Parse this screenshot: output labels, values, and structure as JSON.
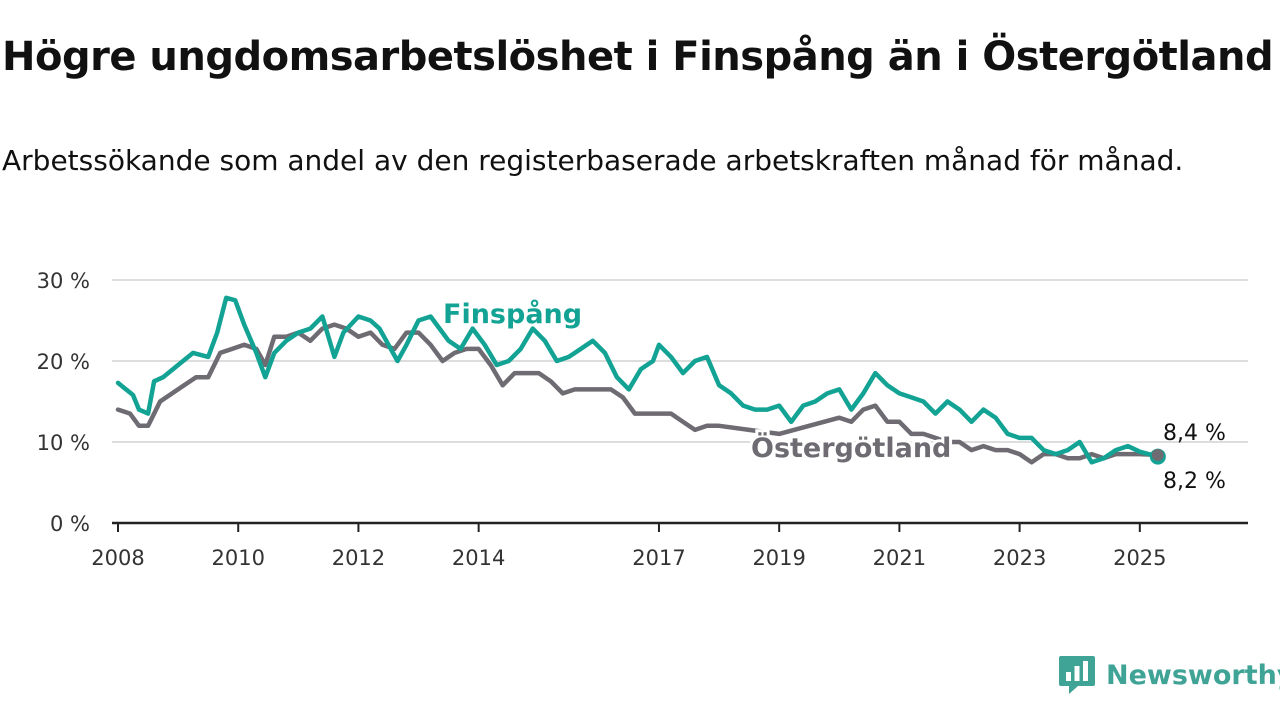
{
  "title": "Högre ungdomsarbetslöshet i Finspång än i Östergötland",
  "subtitle": "Arbetssökande som andel av den registerbaserade arbetskraften månad för månad.",
  "brand": "Newsworthy",
  "colors": {
    "finspang": "#13a394",
    "ostergotland": "#6e6c72",
    "grid": "#dddddd",
    "axis": "#222222",
    "brand": "#3fa395"
  },
  "chart_data": {
    "type": "line",
    "title": "Högre ungdomsarbetslöshet i Finspång än i Östergötland",
    "subtitle": "Arbetssökande som andel av den registerbaserade arbetskraften månad för månad.",
    "xlabel": "",
    "ylabel": "",
    "xlim": [
      2007.9,
      2026.8
    ],
    "ylim": [
      0,
      30
    ],
    "yticks": [
      0,
      10,
      20,
      30
    ],
    "ytick_labels": [
      "0 %",
      "10 %",
      "20 %",
      "30 %"
    ],
    "xticks": [
      2008,
      2010,
      2012,
      2014,
      2017,
      2019,
      2021,
      2023,
      2025
    ],
    "xtick_labels": [
      "2008",
      "2010",
      "2012",
      "2014",
      "2017",
      "2019",
      "2021",
      "2023",
      "2025"
    ],
    "grid": true,
    "legend": "direct labels",
    "series": [
      {
        "name": "Finspång",
        "final_label": "8,2 %",
        "x": [
          2008.0,
          2008.25,
          2008.35,
          2008.5,
          2008.6,
          2008.75,
          2009.0,
          2009.25,
          2009.5,
          2009.65,
          2009.8,
          2009.95,
          2010.1,
          2010.3,
          2010.45,
          2010.6,
          2010.8,
          2011.0,
          2011.2,
          2011.4,
          2011.6,
          2011.75,
          2012.0,
          2012.2,
          2012.35,
          2012.5,
          2012.65,
          2012.8,
          2013.0,
          2013.2,
          2013.35,
          2013.5,
          2013.7,
          2013.9,
          2014.1,
          2014.3,
          2014.5,
          2014.7,
          2014.9,
          2015.1,
          2015.3,
          2015.5,
          2015.7,
          2015.9,
          2016.1,
          2016.3,
          2016.5,
          2016.7,
          2016.9,
          2017.0,
          2017.2,
          2017.4,
          2017.6,
          2017.8,
          2018.0,
          2018.2,
          2018.4,
          2018.6,
          2018.8,
          2019.0,
          2019.2,
          2019.4,
          2019.6,
          2019.8,
          2020.0,
          2020.2,
          2020.4,
          2020.6,
          2020.8,
          2021.0,
          2021.2,
          2021.4,
          2021.6,
          2021.8,
          2022.0,
          2022.2,
          2022.4,
          2022.6,
          2022.8,
          2023.0,
          2023.2,
          2023.4,
          2023.6,
          2023.8,
          2024.0,
          2024.2,
          2024.4,
          2024.6,
          2024.8,
          2025.0,
          2025.3
        ],
        "values": [
          17.3,
          15.8,
          14.0,
          13.5,
          17.5,
          18.0,
          19.5,
          21.0,
          20.5,
          23.5,
          27.8,
          27.5,
          24.5,
          21.0,
          18.0,
          21.0,
          22.5,
          23.5,
          24.0,
          25.5,
          20.5,
          23.5,
          25.5,
          25.0,
          24.0,
          22.0,
          20.0,
          22.0,
          25.0,
          25.5,
          24.0,
          22.5,
          21.5,
          24.0,
          22.0,
          19.5,
          20.0,
          21.5,
          24.0,
          22.5,
          20.0,
          20.5,
          21.5,
          22.5,
          21.0,
          18.0,
          16.5,
          19.0,
          20.0,
          22.0,
          20.5,
          18.5,
          20.0,
          20.5,
          17.0,
          16.0,
          14.5,
          14.0,
          14.0,
          14.5,
          12.5,
          14.5,
          15.0,
          16.0,
          16.5,
          14.0,
          16.0,
          18.5,
          17.0,
          16.0,
          15.5,
          15.0,
          13.5,
          15.0,
          14.0,
          12.5,
          14.0,
          13.0,
          11.0,
          10.5,
          10.5,
          9.0,
          8.5,
          9.0,
          10.0,
          7.5,
          8.0,
          9.0,
          9.5,
          8.8,
          8.2
        ]
      },
      {
        "name": "Östergötland",
        "final_label": "8,4 %",
        "x": [
          2008.0,
          2008.2,
          2008.35,
          2008.5,
          2008.7,
          2008.9,
          2009.1,
          2009.3,
          2009.5,
          2009.7,
          2009.9,
          2010.1,
          2010.3,
          2010.45,
          2010.6,
          2010.8,
          2011.0,
          2011.2,
          2011.4,
          2011.6,
          2011.8,
          2012.0,
          2012.2,
          2012.4,
          2012.6,
          2012.8,
          2013.0,
          2013.2,
          2013.4,
          2013.6,
          2013.8,
          2014.0,
          2014.2,
          2014.4,
          2014.6,
          2014.8,
          2015.0,
          2015.2,
          2015.4,
          2015.6,
          2015.8,
          2016.0,
          2016.2,
          2016.4,
          2016.6,
          2016.8,
          2017.0,
          2017.2,
          2017.4,
          2017.6,
          2017.8,
          2018.0,
          2018.5,
          2019.0,
          2019.5,
          2020.0,
          2020.2,
          2020.4,
          2020.6,
          2020.8,
          2021.0,
          2021.2,
          2021.4,
          2021.6,
          2021.8,
          2022.0,
          2022.2,
          2022.4,
          2022.6,
          2022.8,
          2023.0,
          2023.2,
          2023.4,
          2023.6,
          2023.8,
          2024.0,
          2024.2,
          2024.4,
          2024.6,
          2024.8,
          2025.0,
          2025.3
        ],
        "values": [
          14.0,
          13.5,
          12.0,
          12.0,
          15.0,
          16.0,
          17.0,
          18.0,
          18.0,
          21.0,
          21.5,
          22.0,
          21.5,
          19.5,
          23.0,
          23.0,
          23.5,
          22.5,
          24.0,
          24.5,
          24.0,
          23.0,
          23.5,
          22.0,
          21.5,
          23.5,
          23.5,
          22.0,
          20.0,
          21.0,
          21.5,
          21.5,
          19.5,
          17.0,
          18.5,
          18.5,
          18.5,
          17.5,
          16.0,
          16.5,
          16.5,
          16.5,
          16.5,
          15.5,
          13.5,
          13.5,
          13.5,
          13.5,
          12.5,
          11.5,
          12.0,
          12.0,
          11.5,
          11.0,
          12.0,
          13.0,
          12.5,
          14.0,
          14.5,
          12.5,
          12.5,
          11.0,
          11.0,
          10.5,
          10.0,
          10.0,
          9.0,
          9.5,
          9.0,
          9.0,
          8.5,
          7.5,
          8.5,
          8.5,
          8.0,
          8.0,
          8.5,
          8.0,
          8.5,
          8.5,
          8.5,
          8.4
        ]
      }
    ]
  }
}
